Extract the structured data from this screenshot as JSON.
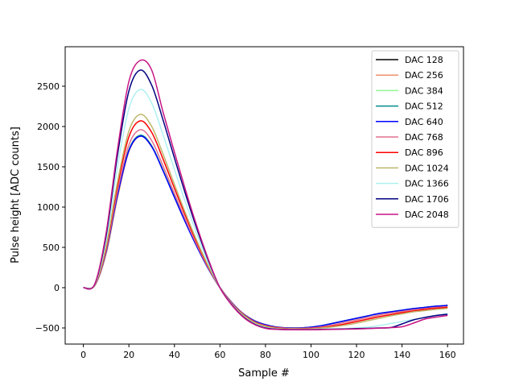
{
  "chart_data": {
    "type": "line",
    "title": "",
    "xlabel": "Sample #",
    "ylabel": "Pulse height [ADC counts]",
    "xlim": [
      -8,
      167
    ],
    "ylim": [
      -700,
      2990
    ],
    "xticks": [
      0,
      20,
      40,
      60,
      80,
      100,
      120,
      140,
      160
    ],
    "yticks": [
      -500,
      0,
      500,
      1000,
      1500,
      2000,
      2500
    ],
    "grid": false,
    "legend": "upper right",
    "x": [
      0,
      5,
      10,
      15,
      20,
      25,
      30,
      35,
      40,
      45,
      50,
      55,
      60,
      65,
      70,
      75,
      80,
      85,
      90,
      95,
      100,
      105,
      110,
      115,
      120,
      125,
      130,
      135,
      140,
      145,
      150,
      155,
      160
    ],
    "series": [
      {
        "name": "DAC 128",
        "color": "#000000",
        "values": [
          0,
          30,
          452,
          1156,
          1709,
          1890,
          1759,
          1457,
          1126,
          804,
          503,
          231,
          0,
          -180,
          -320,
          -410,
          -460,
          -490,
          -500,
          -500,
          -490,
          -470,
          -440,
          -410,
          -380,
          -350,
          -320,
          -300,
          -280,
          -260,
          -245,
          -230,
          -220
        ]
      },
      {
        "name": "DAC 256",
        "color": "#f0906a",
        "values": [
          0,
          25,
          420,
          1120,
          1690,
          1880,
          1750,
          1460,
          1130,
          810,
          510,
          240,
          5,
          -175,
          -315,
          -405,
          -458,
          -488,
          -498,
          -498,
          -490,
          -470,
          -440,
          -410,
          -380,
          -350,
          -320,
          -300,
          -280,
          -262,
          -248,
          -235,
          -225
        ]
      },
      {
        "name": "DAC 384",
        "color": "#90f890",
        "values": [
          0,
          30,
          452,
          1156,
          1709,
          1890,
          1759,
          1457,
          1126,
          804,
          503,
          231,
          0,
          -180,
          -320,
          -410,
          -460,
          -490,
          -500,
          -500,
          -490,
          -470,
          -440,
          -410,
          -380,
          -350,
          -320,
          -300,
          -280,
          -260,
          -245,
          -230,
          -220
        ]
      },
      {
        "name": "DAC 512",
        "color": "#008b8b",
        "values": [
          0,
          30,
          452,
          1156,
          1709,
          1890,
          1759,
          1457,
          1126,
          804,
          503,
          231,
          0,
          -180,
          -320,
          -410,
          -460,
          -490,
          -500,
          -500,
          -490,
          -470,
          -440,
          -410,
          -380,
          -350,
          -320,
          -300,
          -280,
          -260,
          -245,
          -230,
          -220
        ]
      },
      {
        "name": "DAC 640",
        "color": "#0000ff",
        "values": [
          0,
          30,
          450,
          1150,
          1700,
          1880,
          1750,
          1450,
          1120,
          800,
          500,
          230,
          0,
          -180,
          -320,
          -410,
          -460,
          -490,
          -500,
          -500,
          -490,
          -470,
          -440,
          -410,
          -380,
          -350,
          -320,
          -300,
          -280,
          -260,
          -245,
          -230,
          -220
        ]
      },
      {
        "name": "DAC 768",
        "color": "#e07090",
        "values": [
          0,
          31,
          469,
          1199,
          1772,
          1960,
          1825,
          1512,
          1168,
          834,
          521,
          240,
          0,
          -185,
          -325,
          -420,
          -470,
          -495,
          -505,
          -505,
          -500,
          -485,
          -460,
          -430,
          -400,
          -370,
          -340,
          -315,
          -295,
          -275,
          -260,
          -245,
          -235
        ]
      },
      {
        "name": "DAC 896",
        "color": "#ff0000",
        "values": [
          0,
          33,
          495,
          1266,
          1872,
          2070,
          1927,
          1597,
          1233,
          881,
          551,
          253,
          0,
          -190,
          -330,
          -425,
          -475,
          -500,
          -510,
          -510,
          -505,
          -495,
          -475,
          -450,
          -420,
          -390,
          -360,
          -335,
          -310,
          -290,
          -270,
          -255,
          -245
        ]
      },
      {
        "name": "DAC 1024",
        "color": "#bdb76b",
        "values": [
          0,
          34,
          515,
          1315,
          1944,
          2150,
          2001,
          1658,
          1281,
          915,
          572,
          263,
          0,
          -195,
          -335,
          -430,
          -480,
          -505,
          -512,
          -512,
          -510,
          -500,
          -485,
          -465,
          -440,
          -410,
          -380,
          -350,
          -325,
          -300,
          -285,
          -270,
          -258
        ]
      },
      {
        "name": "DAC 1366",
        "color": "#aff0f0",
        "values": [
          0,
          39,
          589,
          1505,
          2224,
          2460,
          2290,
          1897,
          1466,
          1047,
          654,
          301,
          0,
          -200,
          -350,
          -445,
          -495,
          -512,
          -518,
          -520,
          -518,
          -515,
          -512,
          -508,
          -500,
          -490,
          -470,
          -445,
          -420,
          -395,
          -370,
          -345,
          -320
        ]
      },
      {
        "name": "DAC 1706",
        "color": "#000080",
        "values": [
          0,
          43,
          646,
          1652,
          2441,
          2700,
          2513,
          2082,
          1608,
          1149,
          718,
          330,
          0,
          -205,
          -355,
          -450,
          -500,
          -515,
          -520,
          -520,
          -520,
          -518,
          -515,
          -512,
          -508,
          -505,
          -500,
          -495,
          -450,
          -400,
          -370,
          -345,
          -330
        ]
      },
      {
        "name": "DAC 2048",
        "color": "#c71585",
        "values": [
          0,
          45,
          680,
          1720,
          2560,
          2820,
          2700,
          2180,
          1680,
          1200,
          750,
          345,
          0,
          -210,
          -360,
          -455,
          -505,
          -518,
          -522,
          -522,
          -522,
          -520,
          -518,
          -515,
          -512,
          -508,
          -502,
          -495,
          -485,
          -440,
          -390,
          -365,
          -345
        ]
      }
    ]
  }
}
